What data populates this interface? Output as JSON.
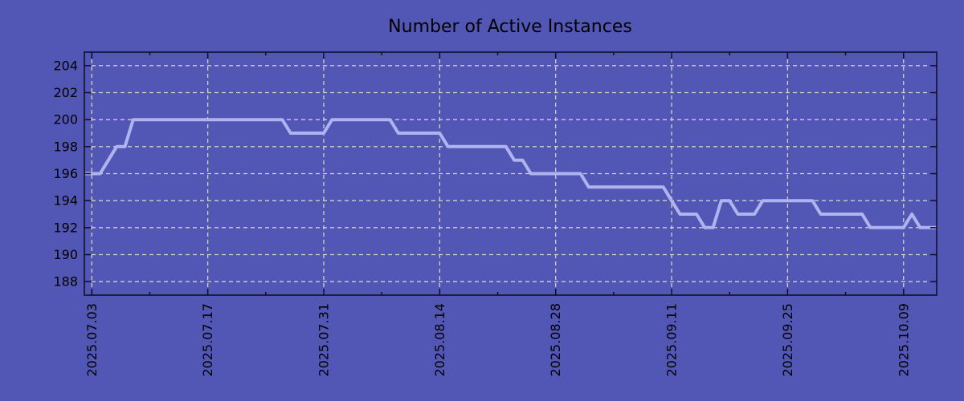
{
  "title": "Number of Active Instances",
  "colors": {
    "background": "#5256b5",
    "line": "#b0b4ee",
    "grid": "#d2d2c6",
    "axis": "#10102a",
    "text": "#000000"
  },
  "chart_data": {
    "type": "line",
    "title": "Number of Active Instances",
    "xlabel": "",
    "ylabel": "",
    "grid": true,
    "legend": "none",
    "ylim": [
      187,
      205
    ],
    "yticks": [
      188,
      190,
      192,
      194,
      196,
      198,
      200,
      202,
      204
    ],
    "xticks": [
      "2025.07.03",
      "2025.07.17",
      "2025.07.31",
      "2025.08.14",
      "2025.08.28",
      "2025.09.11",
      "2025.09.25",
      "2025.10.09"
    ],
    "x_tick_interval_days": 14,
    "x_minor_tick_interval_days": 7,
    "xlim_days_rel_first_tick": [
      -0.9,
      102.0
    ],
    "x": [
      "2025.07.02",
      "2025.07.03",
      "2025.07.04",
      "2025.07.05",
      "2025.07.06",
      "2025.07.07",
      "2025.07.08",
      "2025.07.09",
      "2025.07.10",
      "2025.07.11",
      "2025.07.12",
      "2025.07.13",
      "2025.07.14",
      "2025.07.15",
      "2025.07.16",
      "2025.07.17",
      "2025.07.18",
      "2025.07.19",
      "2025.07.20",
      "2025.07.21",
      "2025.07.22",
      "2025.07.23",
      "2025.07.24",
      "2025.07.25",
      "2025.07.26",
      "2025.07.27",
      "2025.07.28",
      "2025.07.29",
      "2025.07.30",
      "2025.07.31",
      "2025.08.01",
      "2025.08.02",
      "2025.08.03",
      "2025.08.04",
      "2025.08.05",
      "2025.08.06",
      "2025.08.07",
      "2025.08.08",
      "2025.08.09",
      "2025.08.10",
      "2025.08.11",
      "2025.08.12",
      "2025.08.13",
      "2025.08.14",
      "2025.08.15",
      "2025.08.16",
      "2025.08.17",
      "2025.08.18",
      "2025.08.19",
      "2025.08.20",
      "2025.08.21",
      "2025.08.22",
      "2025.08.23",
      "2025.08.24",
      "2025.08.25",
      "2025.08.26",
      "2025.08.27",
      "2025.08.28",
      "2025.08.29",
      "2025.08.30",
      "2025.08.31",
      "2025.09.01",
      "2025.09.02",
      "2025.09.03",
      "2025.09.04",
      "2025.09.05",
      "2025.09.06",
      "2025.09.07",
      "2025.09.08",
      "2025.09.09",
      "2025.09.10",
      "2025.09.11",
      "2025.09.12",
      "2025.09.13",
      "2025.09.14",
      "2025.09.15",
      "2025.09.16",
      "2025.09.17",
      "2025.09.18",
      "2025.09.19",
      "2025.09.20",
      "2025.09.21",
      "2025.09.22",
      "2025.09.23",
      "2025.09.24",
      "2025.09.25",
      "2025.09.26",
      "2025.09.27",
      "2025.09.28",
      "2025.09.29",
      "2025.09.30",
      "2025.10.01",
      "2025.10.02",
      "2025.10.03",
      "2025.10.04",
      "2025.10.05",
      "2025.10.06",
      "2025.10.07",
      "2025.10.08",
      "2025.10.09",
      "2025.10.10",
      "2025.10.11",
      "2025.10.12",
      "2025.10.13"
    ],
    "values": [
      196,
      196,
      196,
      197,
      198,
      198,
      200,
      200,
      200,
      200,
      200,
      200,
      200,
      200,
      200,
      200,
      200,
      200,
      200,
      200,
      200,
      200,
      200,
      200,
      200,
      199,
      199,
      199,
      199,
      199,
      200,
      200,
      200,
      200,
      200,
      200,
      200,
      200,
      199,
      199,
      199,
      199,
      199,
      199,
      198,
      198,
      198,
      198,
      198,
      198,
      198,
      198,
      197,
      197,
      196,
      196,
      196,
      196,
      196,
      196,
      196,
      195,
      195,
      195,
      195,
      195,
      195,
      195,
      195,
      195,
      195,
      194,
      193,
      193,
      193,
      192,
      192,
      194,
      194,
      193,
      193,
      193,
      194,
      194,
      194,
      194,
      194,
      194,
      194,
      193,
      193,
      193,
      193,
      193,
      193,
      192,
      192,
      192,
      192,
      192,
      193,
      192,
      192,
      192
    ]
  }
}
